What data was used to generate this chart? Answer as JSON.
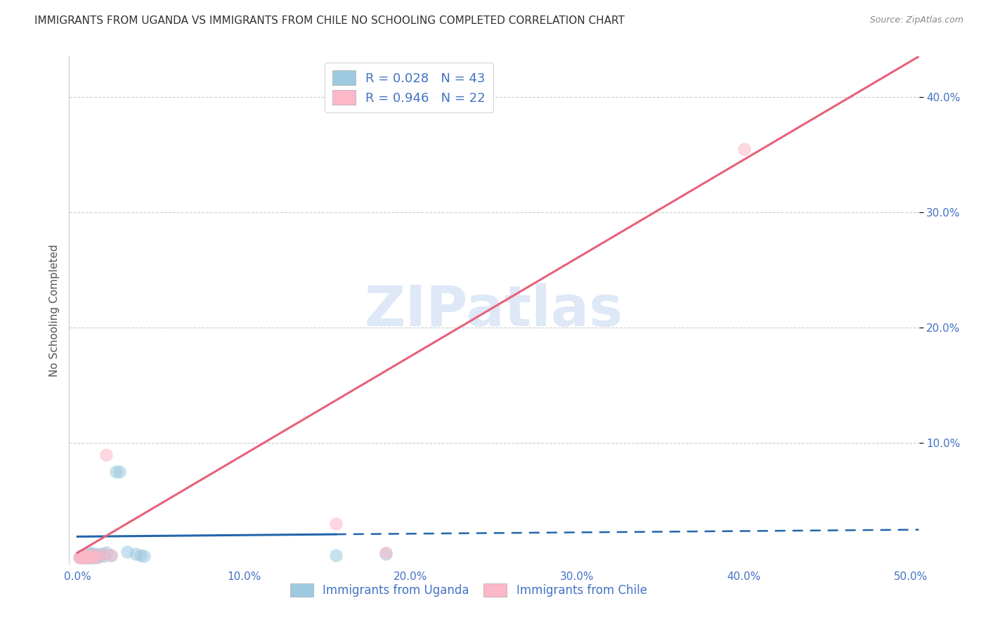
{
  "title": "IMMIGRANTS FROM UGANDA VS IMMIGRANTS FROM CHILE NO SCHOOLING COMPLETED CORRELATION CHART",
  "source": "Source: ZipAtlas.com",
  "ylabel": "No Schooling Completed",
  "xlim": [
    -0.005,
    0.505
  ],
  "ylim": [
    -0.005,
    0.435
  ],
  "xticks": [
    0.0,
    0.1,
    0.2,
    0.3,
    0.4,
    0.5
  ],
  "yticks": [
    0.1,
    0.2,
    0.3,
    0.4
  ],
  "xtick_labels": [
    "0.0%",
    "10.0%",
    "20.0%",
    "30.0%",
    "40.0%",
    "50.0%"
  ],
  "ytick_labels": [
    "10.0%",
    "20.0%",
    "30.0%",
    "40.0%"
  ],
  "legend_r_uganda": "R = 0.028",
  "legend_n_uganda": "N = 43",
  "legend_r_chile": "R = 0.946",
  "legend_n_chile": "N = 22",
  "color_uganda": "#9ecae1",
  "color_chile": "#fcb8c8",
  "color_uganda_line": "#2166ac",
  "color_chile_line": "#e8607a",
  "color_axis_labels": "#4472c4",
  "watermark_color": "#d0dff5",
  "uganda_x": [
    0.001,
    0.002,
    0.002,
    0.003,
    0.003,
    0.003,
    0.004,
    0.004,
    0.004,
    0.005,
    0.005,
    0.005,
    0.006,
    0.006,
    0.006,
    0.007,
    0.007,
    0.007,
    0.008,
    0.008,
    0.008,
    0.009,
    0.009,
    0.01,
    0.01,
    0.011,
    0.011,
    0.012,
    0.012,
    0.013,
    0.014,
    0.015,
    0.016,
    0.017,
    0.02,
    0.023,
    0.025,
    0.03,
    0.035,
    0.038,
    0.04,
    0.155,
    0.185
  ],
  "uganda_y": [
    0.001,
    0.001,
    0.002,
    0.001,
    0.002,
    0.003,
    0.001,
    0.002,
    0.003,
    0.001,
    0.002,
    0.003,
    0.001,
    0.002,
    0.003,
    0.001,
    0.003,
    0.005,
    0.001,
    0.002,
    0.004,
    0.001,
    0.003,
    0.002,
    0.004,
    0.001,
    0.003,
    0.002,
    0.004,
    0.002,
    0.003,
    0.004,
    0.002,
    0.005,
    0.003,
    0.075,
    0.075,
    0.006,
    0.004,
    0.003,
    0.002,
    0.003,
    0.004
  ],
  "chile_x": [
    0.001,
    0.002,
    0.002,
    0.003,
    0.003,
    0.004,
    0.004,
    0.005,
    0.005,
    0.006,
    0.006,
    0.007,
    0.008,
    0.009,
    0.01,
    0.012,
    0.015,
    0.017,
    0.02,
    0.155,
    0.185,
    0.4
  ],
  "chile_y": [
    0.001,
    0.001,
    0.002,
    0.001,
    0.002,
    0.001,
    0.003,
    0.001,
    0.002,
    0.001,
    0.003,
    0.002,
    0.001,
    0.002,
    0.003,
    0.001,
    0.004,
    0.09,
    0.003,
    0.03,
    0.005,
    0.355
  ],
  "uganda_trend_x": [
    0.0,
    0.155,
    0.505
  ],
  "uganda_trend_y_solid_end": 0.021,
  "uganda_trend_y_start": 0.019,
  "uganda_trend_y_end": 0.025,
  "chile_trend_x": [
    0.0,
    0.505
  ],
  "chile_trend_y": [
    0.005,
    0.435
  ]
}
